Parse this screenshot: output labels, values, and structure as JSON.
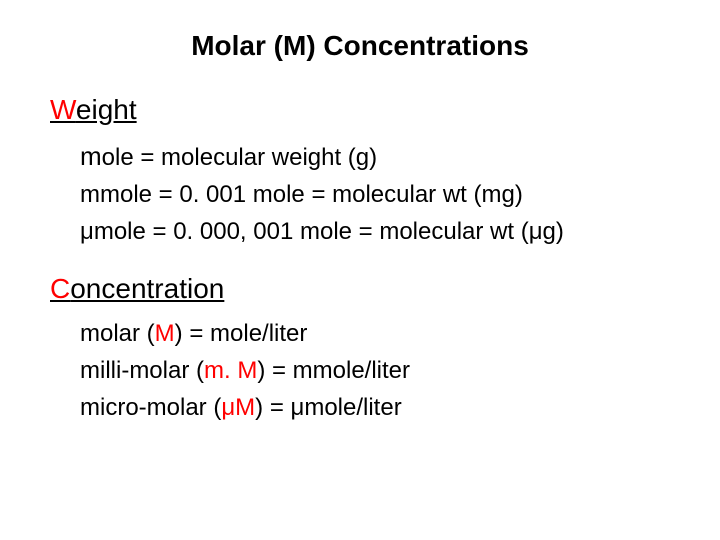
{
  "title": "Molar (M) Concentrations",
  "section1": {
    "heading_prefix": "W",
    "heading_rest": "eight",
    "lines": {
      "l1_m": "m",
      "l1_rest": "ole = molecular weight (g)",
      "l2": "mmole = 0. 001 mole = molecular wt (mg)",
      "l3": "μmole = 0. 000, 001 mole = molecular wt (μg)"
    }
  },
  "section2": {
    "heading_prefix": "C",
    "heading_rest": "oncentration",
    "lines": {
      "l1_a": "molar (",
      "l1_b": "M",
      "l1_c": ") = mole/liter",
      "l2_a": "milli-molar (",
      "l2_b": "m. M",
      "l2_c": ") = mmole/liter",
      "l3_a": "micro-molar (",
      "l3_b": "μM",
      "l3_c": ") = μmole/liter"
    }
  },
  "colors": {
    "accent": "#ff0000",
    "text": "#000000",
    "background": "#ffffff"
  },
  "typography": {
    "title_fontsize": 28,
    "heading_fontsize": 28,
    "body_fontsize": 24,
    "font_family": "Arial"
  }
}
